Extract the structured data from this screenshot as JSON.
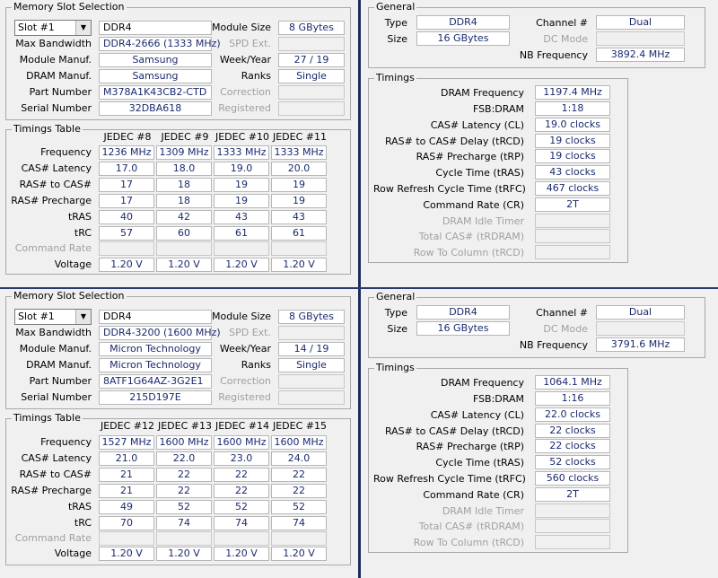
{
  "labels": {
    "memory_slot_selection": "Memory Slot Selection",
    "max_bandwidth": "Max Bandwidth",
    "module_manuf": "Module Manuf.",
    "dram_manuf": "DRAM Manuf.",
    "part_number": "Part Number",
    "serial_number": "Serial Number",
    "module_size": "Module Size",
    "spd_ext": "SPD Ext.",
    "week_year": "Week/Year",
    "ranks": "Ranks",
    "correction": "Correction",
    "registered": "Registered",
    "timings_table": "Timings Table",
    "frequency": "Frequency",
    "cas_latency": "CAS# Latency",
    "ras_to_cas": "RAS# to CAS#",
    "ras_precharge": "RAS# Precharge",
    "tras": "tRAS",
    "trc": "tRC",
    "command_rate": "Command Rate",
    "voltage": "Voltage",
    "general": "General",
    "type": "Type",
    "size": "Size",
    "channel": "Channel #",
    "dc_mode": "DC Mode",
    "nb_frequency": "NB Frequency",
    "timings": "Timings",
    "dram_frequency": "DRAM Frequency",
    "fsb_dram": "FSB:DRAM",
    "cas_latency_cl": "CAS# Latency (CL)",
    "ras_to_cas_delay": "RAS# to CAS# Delay (tRCD)",
    "ras_precharge_trp": "RAS# Precharge (tRP)",
    "cycle_time": "Cycle Time (tRAS)",
    "row_refresh": "Row Refresh Cycle Time (tRFC)",
    "command_rate_cr": "Command Rate (CR)",
    "dram_idle_timer": "DRAM Idle Timer",
    "total_cas": "Total CAS# (tRDRAM)",
    "row_to_column": "Row To Column (tRCD)"
  },
  "spd_top": {
    "slot": "Slot #1",
    "type": "DDR4",
    "max_bandwidth": "DDR4-2666 (1333 MHz)",
    "module_manuf": "Samsung",
    "dram_manuf": "Samsung",
    "part_number": "M378A1K43CB2-CTD",
    "serial_number": "32DBA618",
    "module_size": "8 GBytes",
    "week_year": "27 / 19",
    "ranks": "Single",
    "jedec_headers": [
      "JEDEC #8",
      "JEDEC #9",
      "JEDEC #10",
      "JEDEC #11"
    ],
    "frequency": [
      "1236 MHz",
      "1309 MHz",
      "1333 MHz",
      "1333 MHz"
    ],
    "cas": [
      "17.0",
      "18.0",
      "19.0",
      "20.0"
    ],
    "ras_to_cas": [
      "17",
      "18",
      "19",
      "19"
    ],
    "ras_precharge": [
      "17",
      "18",
      "19",
      "19"
    ],
    "tras": [
      "40",
      "42",
      "43",
      "43"
    ],
    "trc": [
      "57",
      "60",
      "61",
      "61"
    ],
    "voltage": [
      "1.20 V",
      "1.20 V",
      "1.20 V",
      "1.20 V"
    ]
  },
  "spd_bottom": {
    "slot": "Slot #1",
    "type": "DDR4",
    "max_bandwidth": "DDR4-3200 (1600 MHz)",
    "module_manuf": "Micron Technology",
    "dram_manuf": "Micron Technology",
    "part_number": "8ATF1G64AZ-3G2E1",
    "serial_number": "215D197E",
    "module_size": "8 GBytes",
    "week_year": "14 / 19",
    "ranks": "Single",
    "jedec_headers": [
      "JEDEC #12",
      "JEDEC #13",
      "JEDEC #14",
      "JEDEC #15"
    ],
    "frequency": [
      "1527 MHz",
      "1600 MHz",
      "1600 MHz",
      "1600 MHz"
    ],
    "cas": [
      "21.0",
      "22.0",
      "23.0",
      "24.0"
    ],
    "ras_to_cas": [
      "21",
      "22",
      "22",
      "22"
    ],
    "ras_precharge": [
      "21",
      "22",
      "22",
      "22"
    ],
    "tras": [
      "49",
      "52",
      "52",
      "52"
    ],
    "trc": [
      "70",
      "74",
      "74",
      "74"
    ],
    "voltage": [
      "1.20 V",
      "1.20 V",
      "1.20 V",
      "1.20 V"
    ]
  },
  "mem_top": {
    "type": "DDR4",
    "size": "16 GBytes",
    "channel": "Dual",
    "nb_frequency": "3892.4 MHz",
    "dram_frequency": "1197.4 MHz",
    "fsb_dram": "1:18",
    "cl": "19.0 clocks",
    "trcd": "19 clocks",
    "trp": "19 clocks",
    "tras": "43 clocks",
    "trfc": "467 clocks",
    "cr": "2T"
  },
  "mem_bottom": {
    "type": "DDR4",
    "size": "16 GBytes",
    "channel": "Dual",
    "nb_frequency": "3791.6 MHz",
    "dram_frequency": "1064.1 MHz",
    "fsb_dram": "1:16",
    "cl": "22.0 clocks",
    "trcd": "22 clocks",
    "trp": "22 clocks",
    "tras": "52 clocks",
    "trfc": "560 clocks",
    "cr": "2T"
  }
}
